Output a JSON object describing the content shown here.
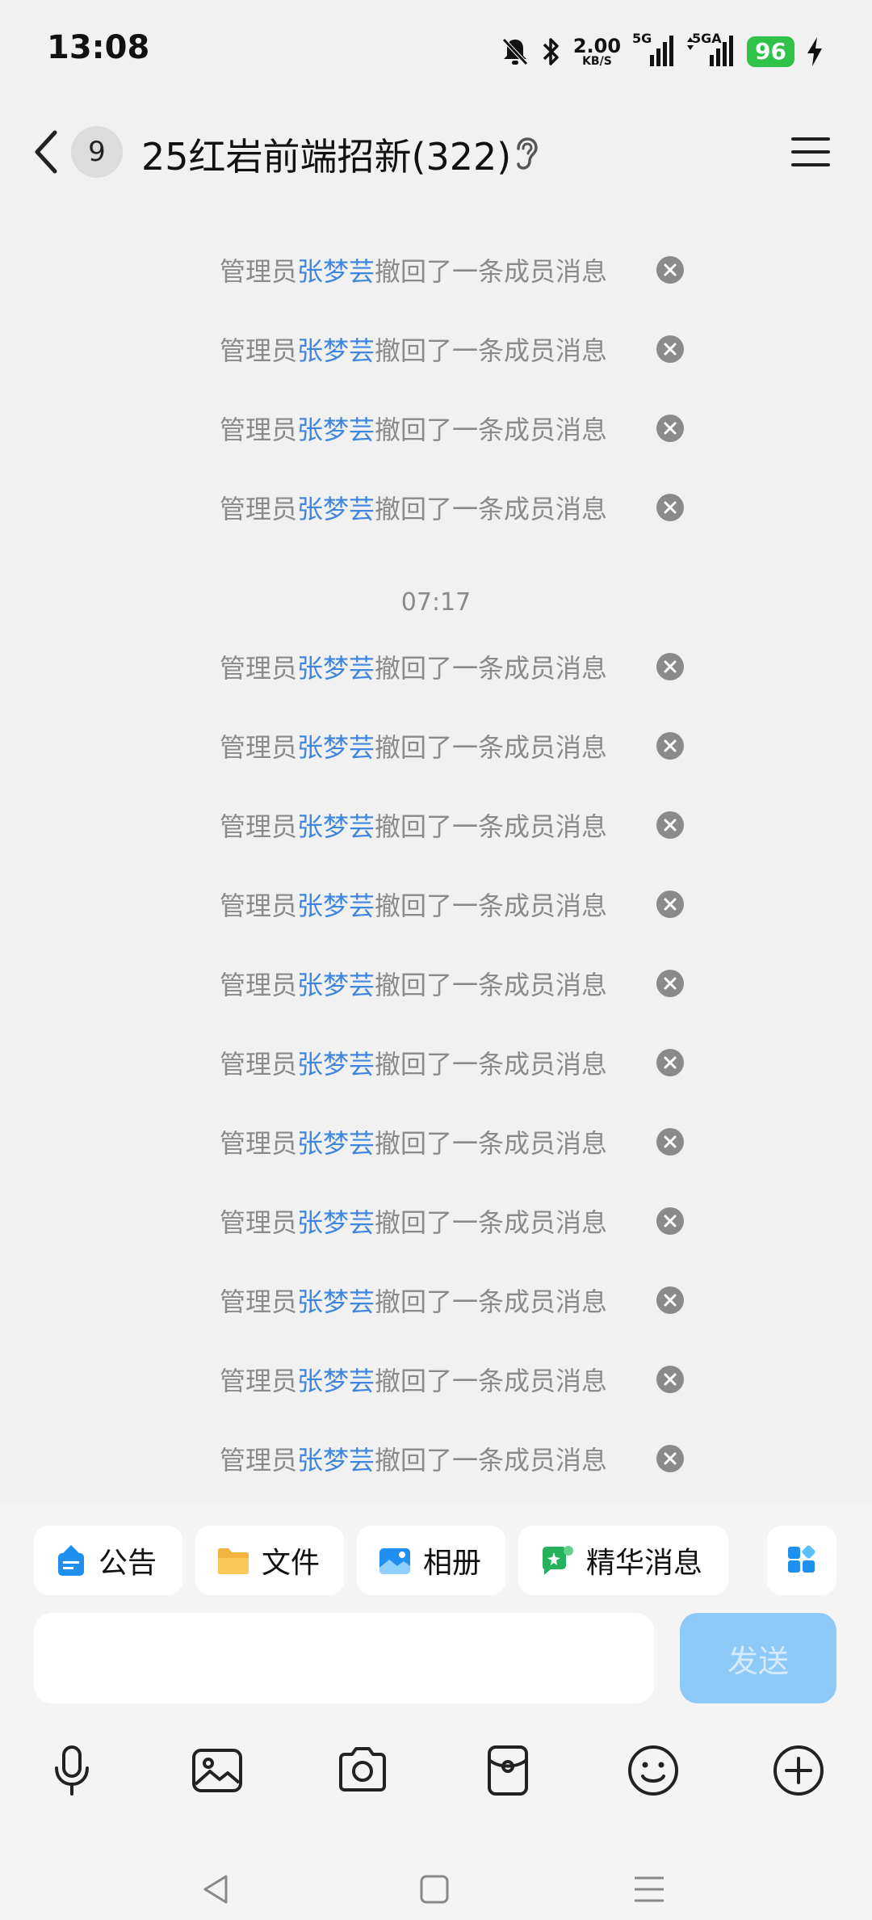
{
  "status_bar": {
    "time": "13:08",
    "net_speed_value": "2.00",
    "net_speed_unit": "KB/S",
    "signal1_label": "5G",
    "signal2_label": "5GA",
    "battery": "96"
  },
  "header": {
    "unread_count": "9",
    "title": "25红岩前端招新(322)"
  },
  "messages": {
    "group1": [
      {
        "prefix": "管理员",
        "name": "张梦芸",
        "suffix": "撤回了一条成员消息"
      },
      {
        "prefix": "管理员",
        "name": "张梦芸",
        "suffix": "撤回了一条成员消息"
      },
      {
        "prefix": "管理员",
        "name": "张梦芸",
        "suffix": "撤回了一条成员消息"
      },
      {
        "prefix": "管理员",
        "name": "张梦芸",
        "suffix": "撤回了一条成员消息"
      }
    ],
    "timestamp": "07:17",
    "group2": [
      {
        "prefix": "管理员",
        "name": "张梦芸",
        "suffix": "撤回了一条成员消息"
      },
      {
        "prefix": "管理员",
        "name": "张梦芸",
        "suffix": "撤回了一条成员消息"
      },
      {
        "prefix": "管理员",
        "name": "张梦芸",
        "suffix": "撤回了一条成员消息"
      },
      {
        "prefix": "管理员",
        "name": "张梦芸",
        "suffix": "撤回了一条成员消息"
      },
      {
        "prefix": "管理员",
        "name": "张梦芸",
        "suffix": "撤回了一条成员消息"
      },
      {
        "prefix": "管理员",
        "name": "张梦芸",
        "suffix": "撤回了一条成员消息"
      },
      {
        "prefix": "管理员",
        "name": "张梦芸",
        "suffix": "撤回了一条成员消息"
      },
      {
        "prefix": "管理员",
        "name": "张梦芸",
        "suffix": "撤回了一条成员消息"
      },
      {
        "prefix": "管理员",
        "name": "张梦芸",
        "suffix": "撤回了一条成员消息"
      },
      {
        "prefix": "管理员",
        "name": "张梦芸",
        "suffix": "撤回了一条成员消息"
      },
      {
        "prefix": "管理员",
        "name": "张梦芸",
        "suffix": "撤回了一条成员消息"
      }
    ]
  },
  "shortcuts": {
    "announcement": "公告",
    "files": "文件",
    "album": "相册",
    "highlights": "精华消息"
  },
  "composer": {
    "input_value": "",
    "send_label": "发送"
  },
  "colors": {
    "admin_name": "#3f86df",
    "send_button": "#8dcaf7",
    "battery": "#2fc248"
  },
  "icons": [
    "mic-icon",
    "image-icon",
    "camera-icon",
    "red-packet-icon",
    "emoji-icon",
    "plus-icon"
  ]
}
